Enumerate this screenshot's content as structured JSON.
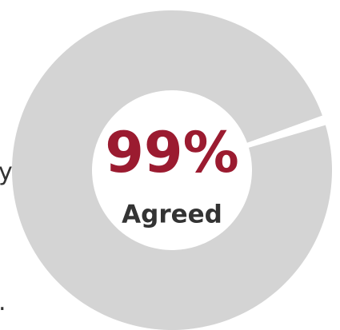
{
  "chart_data": {
    "type": "donut",
    "categories": [
      "Agreed",
      null
    ],
    "values": [
      99,
      1
    ],
    "value_labels": [
      "99%",
      null
    ],
    "colors": [
      "#d4d4d4",
      "#ffffff"
    ]
  },
  "fragments": [
    "y",
    "."
  ]
}
